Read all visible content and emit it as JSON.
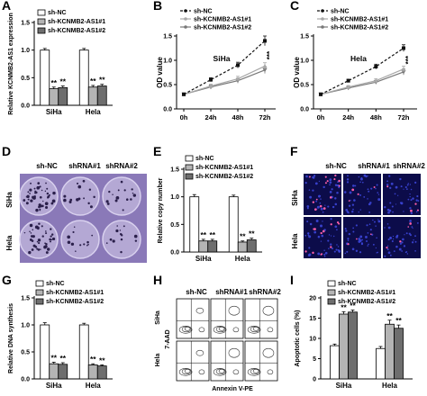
{
  "panel_labels": {
    "A": "A",
    "B": "B",
    "C": "C",
    "D": "D",
    "E": "E",
    "F": "F",
    "G": "G",
    "H": "H",
    "I": "I"
  },
  "colors": {
    "nc": "#ffffff",
    "kd1": "#b4b4b4",
    "kd2": "#6e6e6e",
    "line_nc": "#111111",
    "line_kd1": "#a8a8a8",
    "line_kd2": "#787878",
    "plate": "#8a79b8",
    "fluor_bg": "#0c0c4a"
  },
  "significance_marker": "**",
  "trend_marker": "***",
  "image_panels": {
    "D": {
      "col_labels": [
        "sh-NC",
        "shRNA#1",
        "shRNA#2"
      ],
      "row_labels": [
        "SiHa",
        "Hela"
      ]
    },
    "F": {
      "col_labels": [
        "sh-NC",
        "shRNA#1",
        "shRNA#2"
      ],
      "row_labels": [
        "SiHa",
        "Hela"
      ]
    },
    "H": {
      "col_labels": [
        "sh-NC",
        "shRNA#1",
        "shRNA#2"
      ],
      "row_labels": [
        "SiHa",
        "Hela"
      ],
      "xlabel": "Annexin V-PE",
      "ylabel": "7-AAD"
    }
  },
  "chart_data": [
    {
      "id": "A",
      "type": "bar",
      "ylabel": "Relative KCNMB2-AS1 expression",
      "categories": [
        "SiHa",
        "Hela"
      ],
      "ylim": [
        0,
        1.5
      ],
      "yticks": [
        0.0,
        0.5,
        1.0,
        1.5
      ],
      "legend": [
        "sh-NC",
        "sh-KCNMB2-AS1#1",
        "sh-KCNMB2-AS1#2"
      ],
      "series": [
        {
          "name": "sh-NC",
          "values": [
            1.0,
            1.0
          ]
        },
        {
          "name": "sh-KCNMB2-AS1#1",
          "values": [
            0.3,
            0.33
          ]
        },
        {
          "name": "sh-KCNMB2-AS1#2",
          "values": [
            0.32,
            0.35
          ]
        }
      ],
      "error": [
        [
          0.03,
          0.03
        ],
        [
          0.03,
          0.03
        ],
        [
          0.03,
          0.03
        ]
      ]
    },
    {
      "id": "B",
      "type": "line",
      "title": "SiHa",
      "ylabel": "OD value",
      "x": [
        "0h",
        "24h",
        "48h",
        "72h"
      ],
      "ylim": [
        0.0,
        1.5
      ],
      "yticks": [
        0.0,
        0.5,
        1.0,
        1.5
      ],
      "legend": [
        "sh-NC",
        "sh-KCNMB2-AS1#1",
        "sh-KCNMB2-AS1#2"
      ],
      "series": [
        {
          "name": "sh-NC",
          "values": [
            0.3,
            0.6,
            0.9,
            1.4
          ]
        },
        {
          "name": "sh-KCNMB2-AS1#1",
          "values": [
            0.3,
            0.47,
            0.62,
            0.88
          ]
        },
        {
          "name": "sh-KCNMB2-AS1#2",
          "values": [
            0.3,
            0.45,
            0.58,
            0.8
          ]
        }
      ],
      "error": [
        [
          0.02,
          0.04,
          0.06,
          0.1
        ],
        [
          0.02,
          0.04,
          0.05,
          0.07
        ],
        [
          0.02,
          0.04,
          0.05,
          0.07
        ]
      ]
    },
    {
      "id": "C",
      "type": "line",
      "title": "Hela",
      "ylabel": "OD value",
      "x": [
        "0h",
        "24h",
        "48h",
        "72h"
      ],
      "ylim": [
        0.0,
        1.5
      ],
      "yticks": [
        0.0,
        0.5,
        1.0,
        1.5
      ],
      "legend": [
        "sh-NC",
        "sh-KCNMB2-AS1#1",
        "sh-KCNMB2-AS1#2"
      ],
      "series": [
        {
          "name": "sh-NC",
          "values": [
            0.3,
            0.58,
            0.87,
            1.25
          ]
        },
        {
          "name": "sh-KCNMB2-AS1#1",
          "values": [
            0.3,
            0.45,
            0.58,
            0.82
          ]
        },
        {
          "name": "sh-KCNMB2-AS1#2",
          "values": [
            0.3,
            0.43,
            0.55,
            0.76
          ]
        }
      ],
      "error": [
        [
          0.02,
          0.03,
          0.05,
          0.07
        ],
        [
          0.02,
          0.03,
          0.04,
          0.06
        ],
        [
          0.02,
          0.03,
          0.04,
          0.06
        ]
      ]
    },
    {
      "id": "E",
      "type": "bar",
      "ylabel": "Relative copy number",
      "categories": [
        "SiHa",
        "Hela"
      ],
      "ylim": [
        0,
        1.5
      ],
      "yticks": [
        0.0,
        0.5,
        1.0,
        1.5
      ],
      "legend": [
        "sh-NC",
        "sh-KCNMB2-AS1#1",
        "sh-KCNMB2-AS1#2"
      ],
      "series": [
        {
          "name": "sh-NC",
          "values": [
            1.0,
            1.0
          ]
        },
        {
          "name": "sh-KCNMB2-AS1#1",
          "values": [
            0.2,
            0.18
          ]
        },
        {
          "name": "sh-KCNMB2-AS1#2",
          "values": [
            0.2,
            0.22
          ]
        }
      ],
      "error": [
        [
          0.04,
          0.03
        ],
        [
          0.03,
          0.02
        ],
        [
          0.03,
          0.03
        ]
      ]
    },
    {
      "id": "G",
      "type": "bar",
      "ylabel": "Relative DNA synthesis",
      "categories": [
        "SiHa",
        "Hela"
      ],
      "ylim": [
        0,
        1.5
      ],
      "yticks": [
        0.0,
        0.5,
        1.0,
        1.5
      ],
      "legend": [
        "sh-NC",
        "sh-KCNMB2-AS1#1",
        "sh-KCNMB2-AS1#2"
      ],
      "series": [
        {
          "name": "sh-NC",
          "values": [
            1.0,
            1.0
          ]
        },
        {
          "name": "sh-KCNMB2-AS1#1",
          "values": [
            0.28,
            0.26
          ]
        },
        {
          "name": "sh-KCNMB2-AS1#2",
          "values": [
            0.27,
            0.24
          ]
        }
      ],
      "error": [
        [
          0.04,
          0.03
        ],
        [
          0.03,
          0.02
        ],
        [
          0.03,
          0.02
        ]
      ]
    },
    {
      "id": "I",
      "type": "bar",
      "ylabel": "Apoptotic cells (%)",
      "categories": [
        "SiHa",
        "Hela"
      ],
      "ylim": [
        0,
        20
      ],
      "yticks": [
        0,
        5,
        10,
        15,
        20
      ],
      "legend": [
        "sh-NC",
        "sh-KCNMB2-AS1#1",
        "sh-KCNMB2-AS1#2"
      ],
      "series": [
        {
          "name": "sh-NC",
          "values": [
            8.2,
            7.5
          ]
        },
        {
          "name": "sh-KCNMB2-AS1#1",
          "values": [
            16,
            13.5
          ]
        },
        {
          "name": "sh-KCNMB2-AS1#2",
          "values": [
            16.5,
            12.5
          ]
        }
      ],
      "error": [
        [
          0.4,
          0.5
        ],
        [
          0.6,
          1.0
        ],
        [
          0.5,
          0.8
        ]
      ]
    }
  ]
}
